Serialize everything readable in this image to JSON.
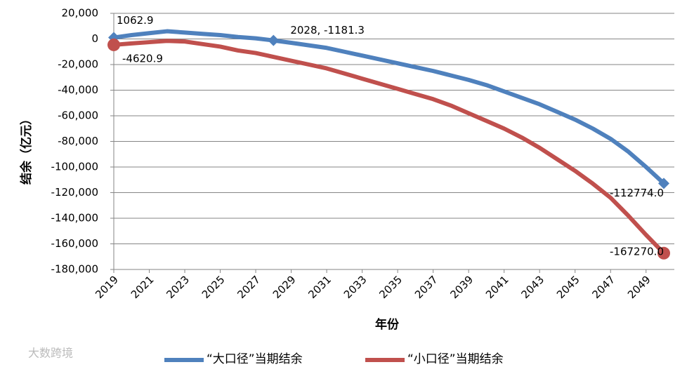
{
  "chart_data": {
    "type": "line",
    "x_label": "年份",
    "y_label": "结余（亿元）",
    "watermark": "大数跨境",
    "x": [
      2019,
      2020,
      2021,
      2022,
      2023,
      2024,
      2025,
      2026,
      2027,
      2028,
      2029,
      2030,
      2031,
      2032,
      2033,
      2034,
      2035,
      2036,
      2037,
      2038,
      2039,
      2040,
      2041,
      2042,
      2043,
      2044,
      2045,
      2046,
      2047,
      2048,
      2049,
      2050
    ],
    "xlim": [
      2019,
      2050
    ],
    "xticks": [
      2019,
      2021,
      2023,
      2025,
      2027,
      2029,
      2031,
      2033,
      2035,
      2037,
      2039,
      2041,
      2043,
      2045,
      2047,
      2049
    ],
    "ylim": [
      -180000,
      20000
    ],
    "yticks": [
      {
        "value": 20000,
        "label": "20,000"
      },
      0,
      {
        "value": -20000,
        "label": "-20,000"
      },
      {
        "value": -40000,
        "label": "-40,000"
      },
      {
        "value": -60000,
        "label": "-60,000"
      },
      {
        "value": -80000,
        "label": "-80,000"
      },
      {
        "value": -100000,
        "label": "-100,000"
      },
      {
        "value": -120000,
        "label": "-120,000"
      },
      {
        "value": -140000,
        "label": "-140,000"
      },
      {
        "value": -160000,
        "label": "-160,000"
      },
      {
        "value": -180000,
        "label": "-180,000"
      }
    ],
    "grid": true,
    "legend": "bottom",
    "series": [
      {
        "name": "“大口径”当期结余",
        "color": "#4f81bd",
        "marker": "diamond",
        "values": [
          1062.9,
          3000,
          4500,
          6000,
          5000,
          4000,
          3000,
          1500,
          500,
          -1181.3,
          -3000,
          -5000,
          -7000,
          -10000,
          -13000,
          -16000,
          -19000,
          -22000,
          -25000,
          -28500,
          -32000,
          -36000,
          -41000,
          -46000,
          -51000,
          -57000,
          -63000,
          -70000,
          -78000,
          -88000,
          -100000,
          -112774
        ],
        "value_labels": [
          "1062.9",
          null,
          null,
          null,
          null,
          null,
          null,
          null,
          null,
          "2028, -1181.3",
          null,
          null,
          null,
          null,
          null,
          null,
          null,
          null,
          null,
          null,
          null,
          null,
          null,
          null,
          null,
          null,
          null,
          null,
          null,
          null,
          null,
          "-112774.0"
        ]
      },
      {
        "name": "“小口径”当期结余",
        "color": "#c0504d",
        "marker": "circle",
        "values": [
          -4620.9,
          -3500,
          -2500,
          -1500,
          -2000,
          -4000,
          -6000,
          -9000,
          -11000,
          -14000,
          -17000,
          -20000,
          -23000,
          -27000,
          -31000,
          -35000,
          -39000,
          -43000,
          -47000,
          -52000,
          -58000,
          -64000,
          -70000,
          -77000,
          -85000,
          -94000,
          -103000,
          -113000,
          -124000,
          -138000,
          -153000,
          -167270
        ],
        "value_labels": [
          "-4620.9",
          null,
          null,
          null,
          null,
          null,
          null,
          null,
          null,
          null,
          null,
          null,
          null,
          null,
          null,
          null,
          null,
          null,
          null,
          null,
          null,
          null,
          null,
          null,
          null,
          null,
          null,
          null,
          null,
          null,
          null,
          "-167270.0"
        ]
      }
    ]
  }
}
